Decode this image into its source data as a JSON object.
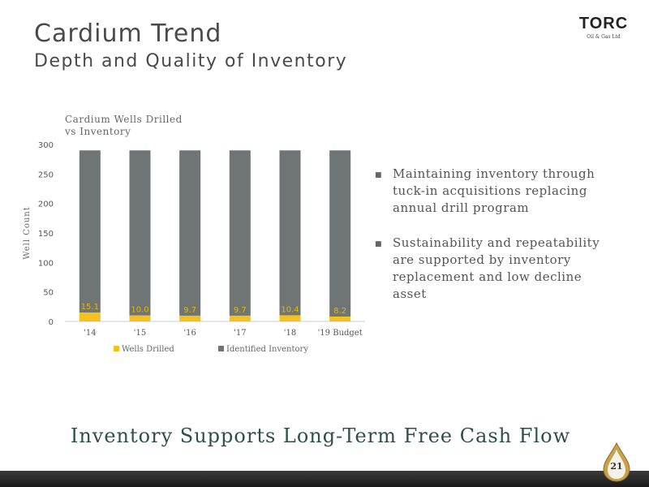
{
  "header": {
    "title": "Cardium Trend",
    "subtitle": "Depth and Quality of Inventory"
  },
  "logo": {
    "word": "TORC",
    "sub": "Oil & Gas Ltd"
  },
  "chart_data": {
    "type": "bar",
    "stacked": true,
    "title": "Cardium Wells Drilled vs Inventory",
    "title_lines": [
      "Cardium Wells Drilled",
      "vs Inventory"
    ],
    "ylabel": "Well Count",
    "xlabel": "",
    "ylim": [
      0,
      300
    ],
    "yticks": [
      0,
      50,
      100,
      150,
      200,
      250,
      300
    ],
    "categories": [
      "'14",
      "'15",
      "'16",
      "'17",
      "'18",
      "'19 Budget"
    ],
    "series": [
      {
        "name": "Wells Drilled",
        "color": "#f5c21b",
        "values": [
          15.1,
          10.0,
          9.7,
          9.7,
          10.4,
          8.2
        ],
        "labels": [
          "15.1",
          "10.0",
          "9.7",
          "9.7",
          "10.4",
          "8.2"
        ]
      },
      {
        "name": "Identified Inventory",
        "color": "#6e7574",
        "values": [
          274.9,
          280,
          280.3,
          280.3,
          279.6,
          281.8
        ]
      }
    ],
    "legend": "bottom",
    "grid": false
  },
  "bullets": [
    "Maintaining inventory through tuck-in acquisitions replacing annual drill program",
    "Sustainability and repeatability are supported by inventory replacement and low decline asset"
  ],
  "bullet_icon": "square-bullet-icon",
  "tagline": "Inventory Supports Long-Term Free Cash Flow",
  "page_number": "21"
}
